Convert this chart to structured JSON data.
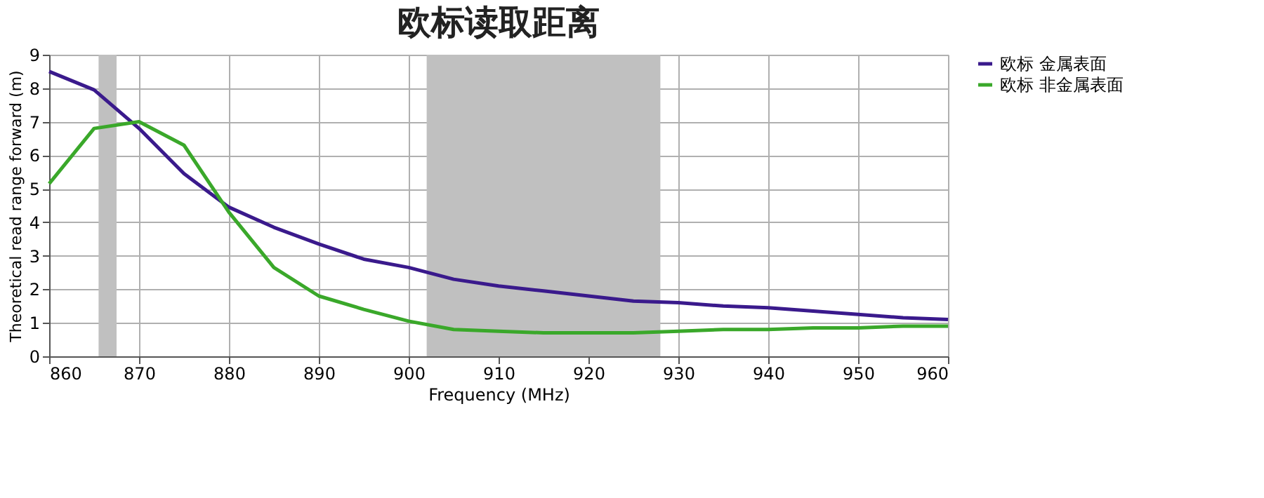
{
  "chart_data": {
    "type": "line",
    "title": "欧标读取距离",
    "xlabel": "Frequency (MHz)",
    "ylabel": "Theoretical read range forward (m)",
    "x": [
      860,
      865,
      870,
      875,
      880,
      885,
      890,
      895,
      900,
      905,
      910,
      915,
      920,
      925,
      930,
      935,
      940,
      945,
      950,
      955,
      960
    ],
    "series": [
      {
        "name": "欧标 金属表面",
        "color": "#3a1a8c",
        "values": [
          8.5,
          7.95,
          6.8,
          5.45,
          4.45,
          3.85,
          3.35,
          2.9,
          2.65,
          2.3,
          2.1,
          1.95,
          1.8,
          1.65,
          1.6,
          1.5,
          1.45,
          1.35,
          1.25,
          1.15,
          1.1
        ]
      },
      {
        "name": "欧标 非金属表面",
        "color": "#3aa82a",
        "values": [
          5.15,
          6.8,
          7.0,
          6.3,
          4.3,
          2.65,
          1.8,
          1.4,
          1.05,
          0.8,
          0.75,
          0.7,
          0.7,
          0.7,
          0.75,
          0.8,
          0.8,
          0.85,
          0.85,
          0.9,
          0.9
        ]
      }
    ],
    "bands": [
      {
        "axis": "x",
        "from": 865.5,
        "to": 867.5,
        "color": "#c0c0c0"
      },
      {
        "axis": "x",
        "from": 902,
        "to": 928,
        "color": "#c0c0c0"
      }
    ],
    "xlim": [
      860,
      960
    ],
    "xticks": [
      860,
      870,
      880,
      890,
      900,
      910,
      920,
      930,
      940,
      950,
      960
    ],
    "ylim": [
      0,
      9
    ],
    "yticks": [
      0,
      1,
      2,
      3,
      4,
      5,
      6,
      7,
      8,
      9
    ],
    "grid": true,
    "legend": "top right",
    "marker": "none",
    "line_style": "solid"
  }
}
